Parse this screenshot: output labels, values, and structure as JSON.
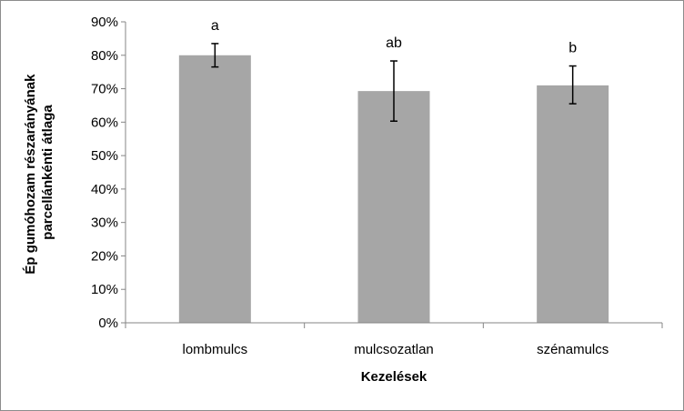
{
  "chart_data": {
    "type": "bar",
    "categories": [
      "lombmulcs",
      "mulcsozatlan",
      "szénamulcs"
    ],
    "values": [
      0.8,
      0.693,
      0.71
    ],
    "error_low": [
      0.765,
      0.603,
      0.655
    ],
    "error_high": [
      0.835,
      0.783,
      0.768
    ],
    "significance_labels": [
      "a",
      "ab",
      "b"
    ],
    "xlabel": "Kezelések",
    "ylabel_lines": [
      "Ép gumóhozam részarányának",
      "parcellánkénti átlaga"
    ],
    "ylim": [
      0,
      0.9
    ],
    "y_ticks": [
      0,
      0.1,
      0.2,
      0.3,
      0.4,
      0.5,
      0.6,
      0.7,
      0.8,
      0.9
    ],
    "y_tick_labels": [
      "0%",
      "10%",
      "20%",
      "30%",
      "40%",
      "50%",
      "60%",
      "70%",
      "80%",
      "90%"
    ],
    "grid": false,
    "legend": "none",
    "colors": {
      "bar": "#a6a6a6",
      "axis": "#868686",
      "error_bar": "#000000"
    }
  }
}
